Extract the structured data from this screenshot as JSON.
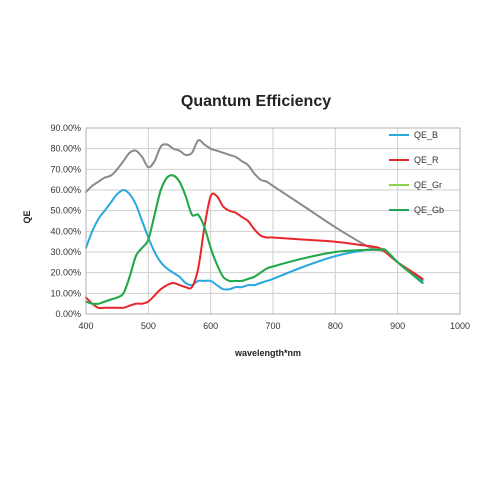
{
  "chart_data": {
    "type": "line",
    "title": "Quantum Efficiency",
    "xlabel": "wavelength*nm",
    "ylabel": "QE",
    "xlim": [
      400,
      1000
    ],
    "ylim": [
      0,
      90
    ],
    "x_ticks": [
      400,
      500,
      600,
      700,
      800,
      900,
      1000
    ],
    "y_ticks": [
      0,
      10,
      20,
      30,
      40,
      50,
      60,
      70,
      80,
      90
    ],
    "y_tick_labels": [
      "0.00%",
      "10.00%",
      "20.00%",
      "30.00%",
      "40.00%",
      "50.00%",
      "60.00%",
      "70.00%",
      "80.00%",
      "90.00%"
    ],
    "grid": {
      "horizontal": true,
      "vertical": true
    },
    "legend_position": "right",
    "legend_order": [
      "QE_B",
      "QE_R",
      "QE_Gr",
      "QE_Gb"
    ],
    "series": [
      {
        "name": "",
        "color": "#8a8a8a",
        "x": [
          400,
          410,
          420,
          430,
          440,
          450,
          460,
          470,
          480,
          490,
          500,
          510,
          520,
          530,
          540,
          550,
          560,
          570,
          580,
          590,
          600,
          610,
          620,
          630,
          640,
          650,
          660,
          670,
          680,
          690,
          700,
          750,
          800,
          850,
          870,
          880,
          900,
          920,
          940
        ],
        "y": [
          59,
          62,
          64,
          66,
          67,
          70,
          74,
          78,
          79,
          76,
          71,
          74,
          81,
          82,
          80,
          79,
          77,
          78,
          84,
          82,
          80,
          79,
          78,
          77,
          76,
          74,
          72,
          68,
          65,
          64,
          62,
          52,
          42,
          33,
          31,
          30,
          25,
          21,
          17
        ]
      },
      {
        "name": "QE_B",
        "color": "#29a7e1",
        "x": [
          400,
          410,
          420,
          430,
          440,
          450,
          460,
          470,
          480,
          490,
          500,
          510,
          520,
          530,
          540,
          550,
          560,
          570,
          580,
          590,
          600,
          610,
          620,
          630,
          640,
          650,
          660,
          670,
          680,
          690,
          700,
          750,
          800,
          850,
          870,
          880,
          900,
          920,
          940
        ],
        "y": [
          32,
          40,
          46,
          50,
          54,
          58,
          60,
          58,
          53,
          45,
          37,
          30,
          25,
          22,
          20,
          18,
          15,
          14,
          16,
          16,
          16,
          14,
          12,
          12,
          13,
          13,
          14,
          14,
          15,
          16,
          17,
          23,
          28,
          31,
          31,
          31,
          25,
          20,
          16
        ]
      },
      {
        "name": "QE_R",
        "color": "#e8262a",
        "x": [
          400,
          410,
          420,
          430,
          440,
          450,
          460,
          470,
          480,
          490,
          500,
          510,
          520,
          530,
          540,
          550,
          560,
          570,
          580,
          590,
          600,
          610,
          620,
          630,
          640,
          650,
          660,
          670,
          680,
          690,
          700,
          750,
          800,
          850,
          870,
          880,
          900,
          920,
          940
        ],
        "y": [
          8,
          5,
          3,
          3,
          3,
          3,
          3,
          4,
          5,
          5,
          6,
          9,
          12,
          14,
          15,
          14,
          13,
          13,
          22,
          42,
          57,
          57,
          52,
          50,
          49,
          47,
          45,
          41,
          38,
          37,
          37,
          36,
          35,
          33,
          32,
          30,
          25,
          21,
          17
        ]
      },
      {
        "name": "QE_Gr",
        "color": "#8ed14f",
        "x": [
          400,
          410,
          420,
          430,
          440,
          450,
          460,
          470,
          480,
          490,
          500,
          510,
          520,
          530,
          540,
          550,
          560,
          570,
          580,
          590,
          600,
          610,
          620,
          630,
          640,
          650,
          660,
          670,
          680,
          690,
          700,
          750,
          800,
          850,
          870,
          880,
          900,
          920,
          940
        ],
        "y": [
          6,
          5,
          5,
          6,
          7,
          8,
          10,
          18,
          28,
          32,
          36,
          48,
          60,
          66,
          67,
          64,
          57,
          48,
          48,
          42,
          32,
          24,
          18,
          16,
          16,
          16,
          17,
          18,
          20,
          22,
          23,
          27,
          30,
          31,
          31,
          31,
          25,
          20,
          15
        ]
      },
      {
        "name": "QE_Gb",
        "color": "#1fa84f",
        "x": [
          400,
          410,
          420,
          430,
          440,
          450,
          460,
          470,
          480,
          490,
          500,
          510,
          520,
          530,
          540,
          550,
          560,
          570,
          580,
          590,
          600,
          610,
          620,
          630,
          640,
          650,
          660,
          670,
          680,
          690,
          700,
          750,
          800,
          850,
          870,
          880,
          900,
          920,
          940
        ],
        "y": [
          6,
          5,
          5,
          6,
          7,
          8,
          10,
          18,
          28,
          32,
          36,
          48,
          60,
          66,
          67,
          64,
          57,
          48,
          48,
          42,
          32,
          24,
          18,
          16,
          16,
          16,
          17,
          18,
          20,
          22,
          23,
          27,
          30,
          31,
          31,
          31,
          25,
          20,
          15
        ]
      }
    ]
  }
}
